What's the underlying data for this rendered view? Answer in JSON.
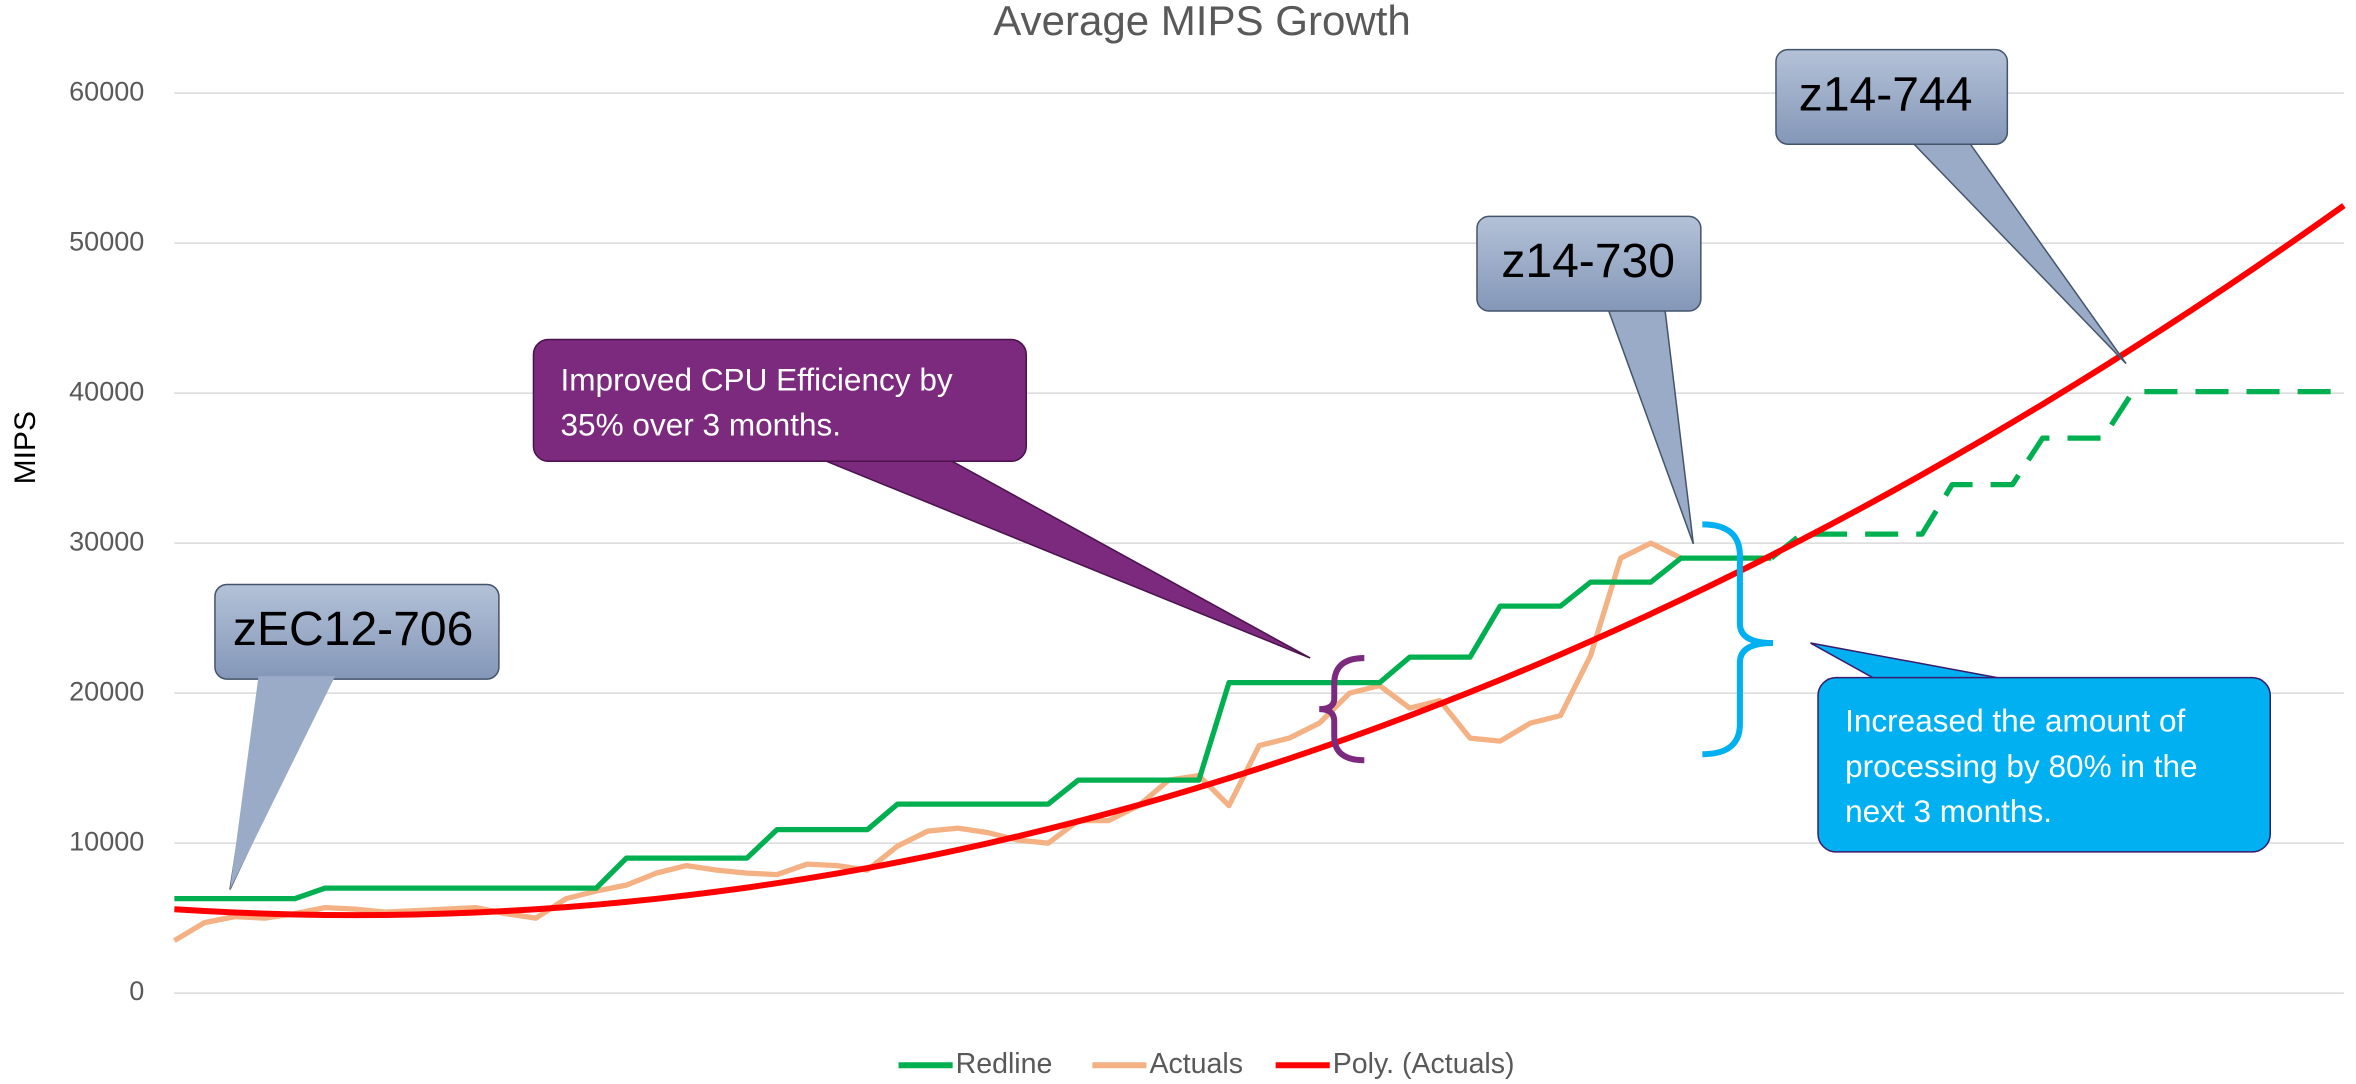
{
  "chart_data": {
    "type": "line",
    "title": "Average MIPS Growth",
    "y_label": "MIPS",
    "categories": [
      null,
      null,
      null,
      null,
      null,
      null,
      null,
      null,
      null,
      null,
      null,
      null,
      null,
      null,
      null,
      null,
      null,
      null,
      null,
      null,
      null,
      null,
      null,
      null,
      null,
      null,
      null,
      null,
      null,
      null,
      null,
      null,
      null,
      null,
      null,
      null,
      null,
      null,
      null,
      null,
      null,
      null,
      null,
      null,
      null,
      null,
      null,
      null,
      null,
      null,
      null,
      null,
      null,
      null,
      null,
      null,
      null,
      null,
      null,
      null,
      null,
      null,
      null,
      null,
      null,
      null,
      null,
      null,
      null,
      null,
      null,
      null,
      null
    ],
    "series": [
      {
        "name": "Redline",
        "color": "#00b050",
        "dashed_from": 53,
        "values": [
          6300,
          6300,
          6300,
          6300,
          6300,
          7000,
          7000,
          7000,
          7000,
          7000,
          7000,
          7000,
          7000,
          7000,
          7000,
          9000,
          9000,
          9000,
          9000,
          9000,
          10900,
          10900,
          10900,
          10900,
          12600,
          12600,
          12600,
          12600,
          12600,
          12600,
          14200,
          14200,
          14200,
          14200,
          14200,
          20700,
          20700,
          20700,
          20700,
          20700,
          20700,
          22400,
          22400,
          22400,
          25800,
          25800,
          25800,
          27400,
          27400,
          27400,
          29000,
          29000,
          29000,
          29000,
          30600,
          30600,
          30600,
          30600,
          30600,
          33900,
          33900,
          33900,
          37000,
          37000,
          37000,
          40100,
          40100,
          40100,
          40100,
          40100,
          40100,
          40100,
          40100
        ]
      },
      {
        "name": "Actuals",
        "color": "#f4b183",
        "values": [
          3500,
          4700,
          5100,
          5000,
          5300,
          5700,
          5600,
          5400,
          5500,
          5600,
          5700,
          5300,
          5000,
          6300,
          6800,
          7200,
          8000,
          8500,
          8200,
          8000,
          7900,
          8600,
          8500,
          8200,
          9800,
          10800,
          11000,
          10700,
          10200,
          10000,
          11500,
          11500,
          12500,
          14200,
          14500,
          12500,
          16500,
          17000,
          18000,
          20000,
          20500,
          19000,
          19500,
          17000,
          16800,
          18000,
          18500,
          22500,
          29000,
          30000,
          29000,
          null,
          null,
          null,
          null,
          null,
          null,
          null,
          null,
          null,
          null,
          null,
          null,
          null,
          null,
          null,
          null,
          null,
          null,
          null,
          null,
          null,
          null
        ]
      },
      {
        "name": "Poly. (Actuals)",
        "color": "#ff0000",
        "values": [
          5591,
          5472,
          5374,
          5298,
          5243,
          5211,
          5200,
          5211,
          5243,
          5298,
          5374,
          5472,
          5591,
          5732,
          5895,
          6080,
          6286,
          6514,
          6764,
          7035,
          7329,
          7644,
          7980,
          8339,
          8719,
          9120,
          9544,
          9989,
          10456,
          10945,
          11455,
          11988,
          12541,
          13117,
          13714,
          14333,
          14974,
          15636,
          16321,
          17027,
          17754,
          18504,
          19275,
          20067,
          20882,
          21718,
          22576,
          23456,
          24357,
          25280,
          26225,
          27192,
          28180,
          29190,
          30221,
          31275,
          32350,
          33447,
          34565,
          35706,
          36868,
          38052,
          39257,
          40484,
          41733,
          43004,
          44296,
          45610,
          46946,
          48303,
          49683,
          51084,
          52506
        ]
      }
    ],
    "ylim": [
      0,
      60000
    ],
    "yticks": [
      0,
      10000,
      20000,
      30000,
      40000,
      50000,
      60000
    ],
    "grid": true,
    "legend": "bottom",
    "annotations": [
      {
        "text": [
          "zEC12-706"
        ]
      },
      {
        "text": [
          "z14-730"
        ]
      },
      {
        "text": [
          "z14-744"
        ]
      },
      {
        "text": [
          "Improved CPU Efficiency by",
          "35% over 3 months."
        ]
      },
      {
        "text": [
          "Increased the amount of",
          "processing by 80% in the",
          "next 3 months."
        ]
      }
    ]
  }
}
